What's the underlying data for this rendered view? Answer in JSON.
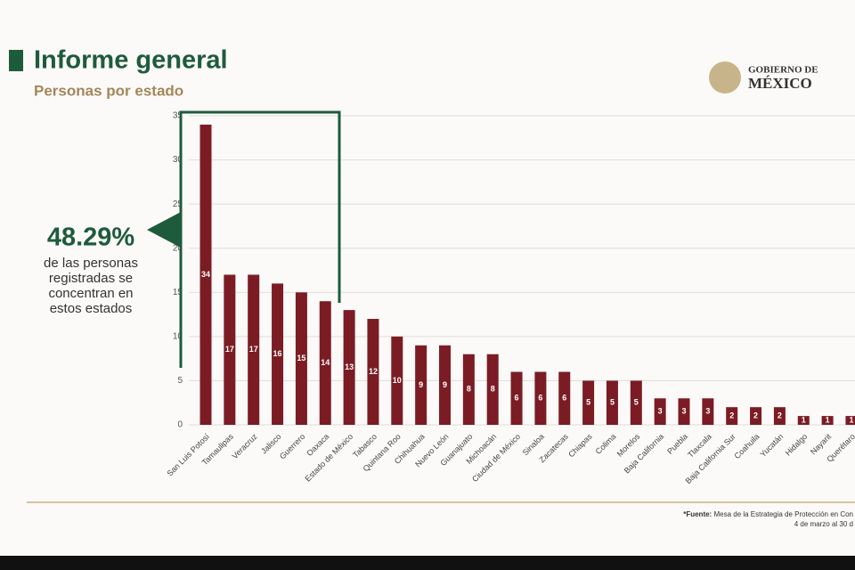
{
  "header": {
    "title": "Informe general",
    "subtitle": "Personas por estado",
    "logo": "GOBIERNO DE",
    "logo_country": "MÉXICO"
  },
  "callout": {
    "value": "48.29%",
    "text": [
      "de las personas",
      "registradas se",
      "concentran en",
      "estos estados"
    ]
  },
  "footer": {
    "source_label": "*Fuente:",
    "source": "Mesa de la Estrategia de Protección en Con",
    "dates": "4 de marzo al 30 d"
  },
  "chart_data": {
    "type": "bar",
    "color": "#7b1c24",
    "grid": true,
    "categories": [
      "San Luis Potosí",
      "Tamaulipas",
      "Veracruz",
      "Jalisco",
      "Guerrero",
      "Oaxaca",
      "Estado de México",
      "Tabasco",
      "Quintana Roo",
      "Chihuahua",
      "Nuevo León",
      "Guanajuato",
      "Michoacán",
      "Ciudad de México",
      "Sinaloa",
      "Zacatecas",
      "Chiapas",
      "Colima",
      "Morelos",
      "Baja California",
      "Puebla",
      "Tlaxcala",
      "Baja California Sur",
      "Coahuila",
      "Yucatán",
      "Hidalgo",
      "Nayarit",
      "Querétaro"
    ],
    "values": [
      34,
      17,
      17,
      16,
      15,
      14,
      13,
      12,
      10,
      9,
      9,
      8,
      8,
      6,
      6,
      6,
      5,
      5,
      5,
      3,
      3,
      3,
      2,
      2,
      2,
      1,
      1,
      1
    ],
    "ylim": [
      0,
      35
    ],
    "yticks": [
      0,
      5,
      10,
      15,
      20,
      25,
      30,
      35
    ]
  }
}
